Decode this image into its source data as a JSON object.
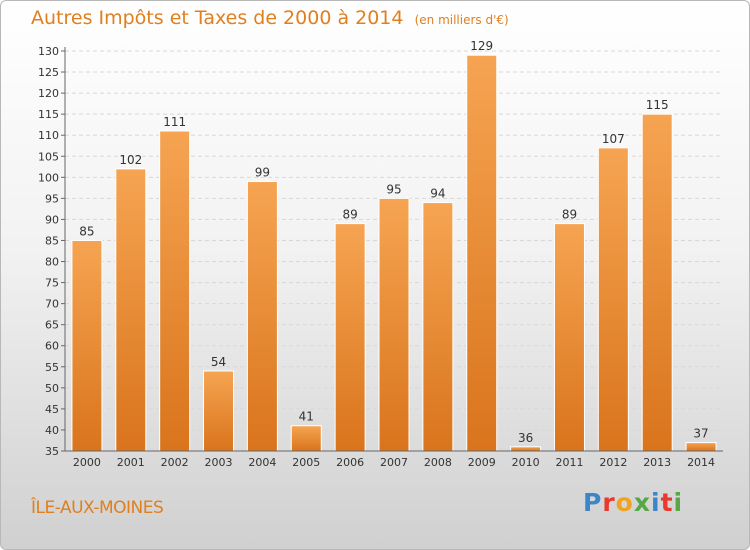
{
  "header": {
    "title": "Autres Impôts et Taxes de 2000 à 2014",
    "unit": "(en milliers d'€)"
  },
  "footer": {
    "place": "ÎLE-AUX-MOINES",
    "brand": "Proxiti"
  },
  "colors": {
    "accent": "#e07f1e",
    "bar_light": "#f6a452",
    "bar_dark": "#d9741c",
    "brand_letters": [
      "#3a86c8",
      "#e8392f",
      "#f0a31e",
      "#56a845",
      "#3a86c8",
      "#e8392f",
      "#56a845"
    ]
  },
  "chart_data": {
    "type": "bar",
    "categories": [
      "2000",
      "2001",
      "2002",
      "2003",
      "2004",
      "2005",
      "2006",
      "2007",
      "2008",
      "2009",
      "2010",
      "2011",
      "2012",
      "2013",
      "2014"
    ],
    "values": [
      85,
      102,
      111,
      54,
      99,
      41,
      89,
      95,
      94,
      129,
      36,
      89,
      107,
      115,
      37
    ],
    "title": "Autres Impôts et Taxes de 2000 à 2014",
    "xlabel": "",
    "ylabel": "",
    "ylim": [
      35,
      130
    ],
    "yticks": [
      35,
      40,
      45,
      50,
      55,
      60,
      65,
      70,
      75,
      80,
      85,
      90,
      95,
      100,
      105,
      110,
      115,
      120,
      125,
      130
    ],
    "grid": true,
    "legend": "none"
  }
}
